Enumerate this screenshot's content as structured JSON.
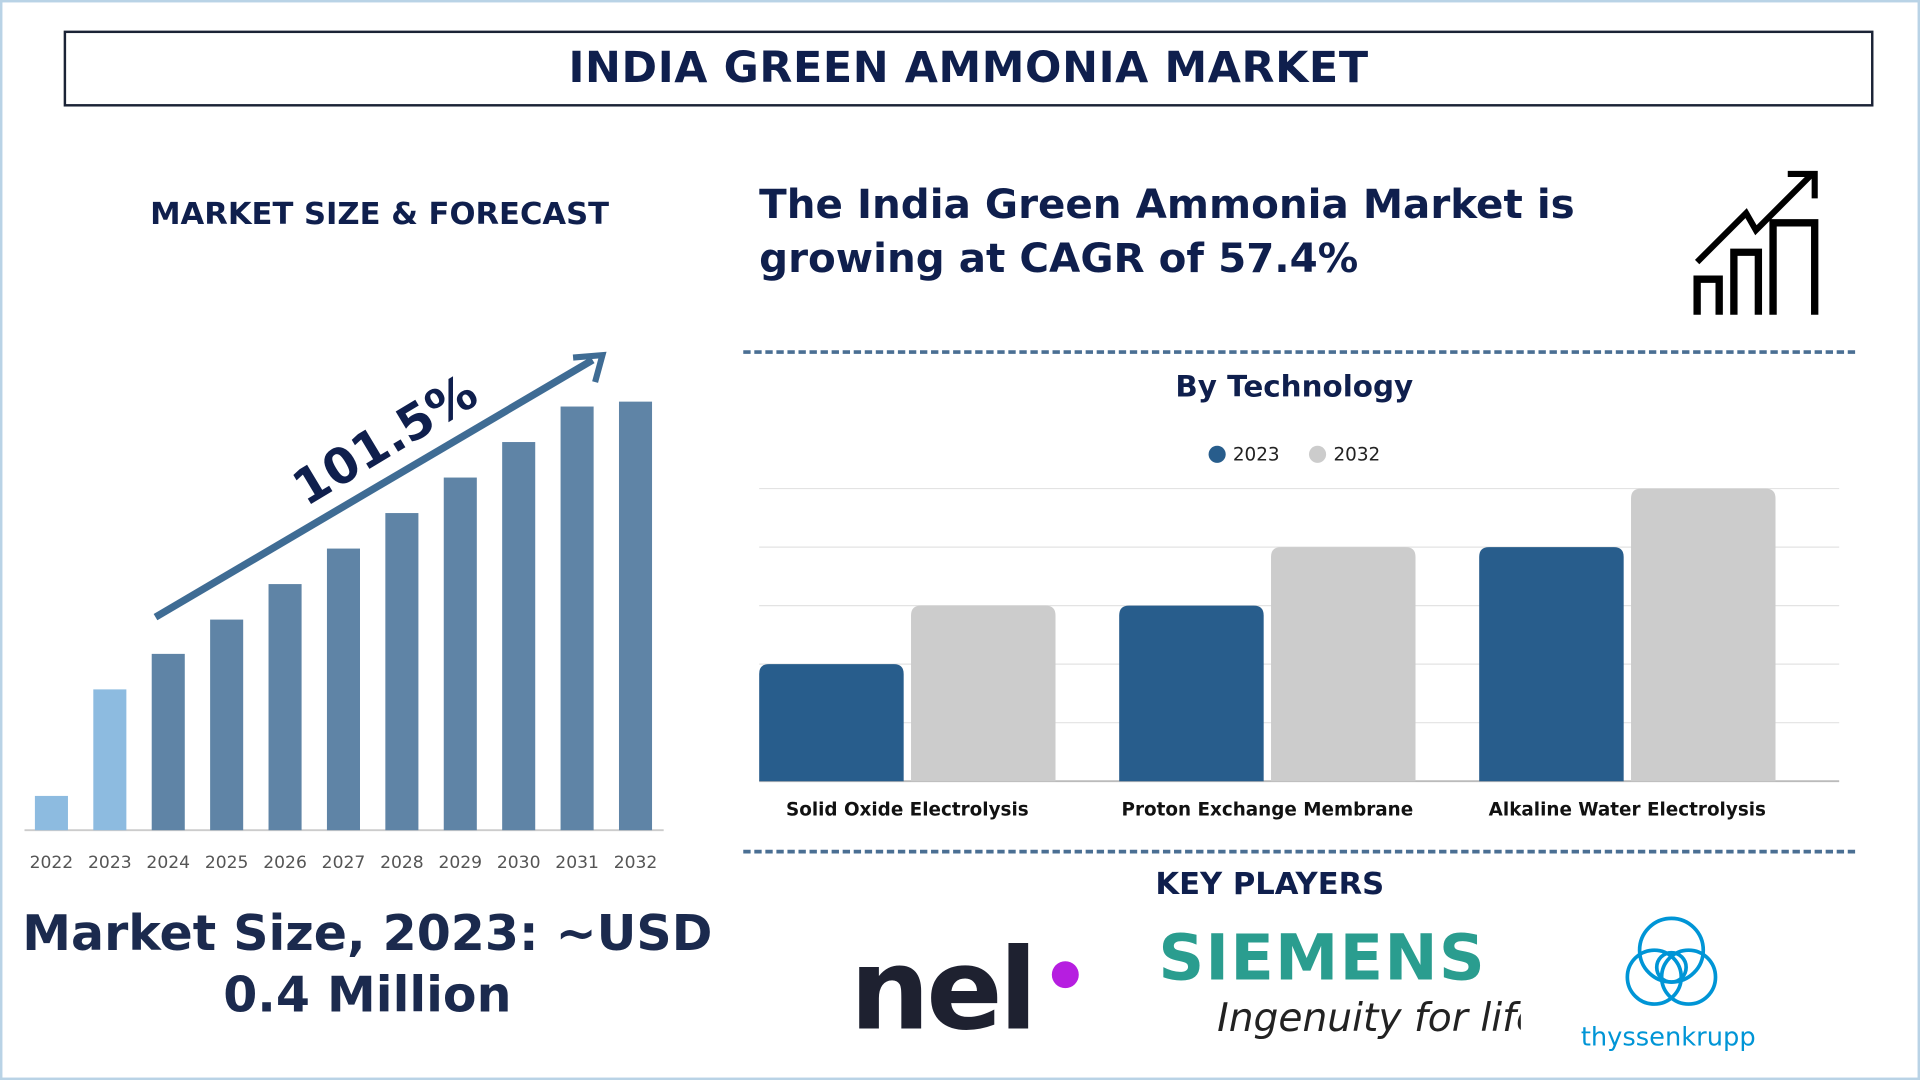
{
  "title": "INDIA GREEN AMMONIA MARKET",
  "left": {
    "heading": "MARKET SIZE & FORECAST",
    "growth_label": "101.5%",
    "market_size_line1": "Market Size, 2023: ~USD",
    "market_size_line2": "0.4 Million"
  },
  "cagr_text_line1": "The India Green Ammonia Market is",
  "cagr_text_line2": "growing at CAGR of 57.4%",
  "key_players": {
    "heading": "KEY PLAYERS",
    "logos": [
      {
        "name": "nel"
      },
      {
        "name": "SIEMENS",
        "tagline": "Ingenuity for life"
      },
      {
        "name": "thyssenkrupp"
      }
    ]
  },
  "chart_data": [
    {
      "type": "bar",
      "title": "",
      "categories": [
        "2022",
        "2023",
        "2024",
        "2025",
        "2026",
        "2027",
        "2028",
        "2029",
        "2030",
        "2031",
        "2032"
      ],
      "values": [
        28,
        115,
        144,
        172,
        201,
        230,
        259,
        288,
        317,
        346,
        350
      ],
      "colors": [
        "#8dbbe0",
        "#8dbbe0",
        "#5f84a6",
        "#5f84a6",
        "#5f84a6",
        "#5f84a6",
        "#5f84a6",
        "#5f84a6",
        "#5f84a6",
        "#5f84a6",
        "#5f84a6"
      ],
      "annotation": "101.5%",
      "grid": false
    },
    {
      "type": "bar",
      "title": "By Technology",
      "categories": [
        "Solid Oxide Electrolysis",
        "Proton Exchange Membrane",
        "Alkaline Water Electrolysis"
      ],
      "series": [
        {
          "name": "2023",
          "values": [
            2,
            3,
            4
          ],
          "color": "#285d8c"
        },
        {
          "name": "2032",
          "values": [
            3,
            4,
            5
          ],
          "color": "#cccccc"
        }
      ],
      "ylim": [
        0,
        5
      ],
      "grid": true,
      "legend": "top-center"
    }
  ]
}
